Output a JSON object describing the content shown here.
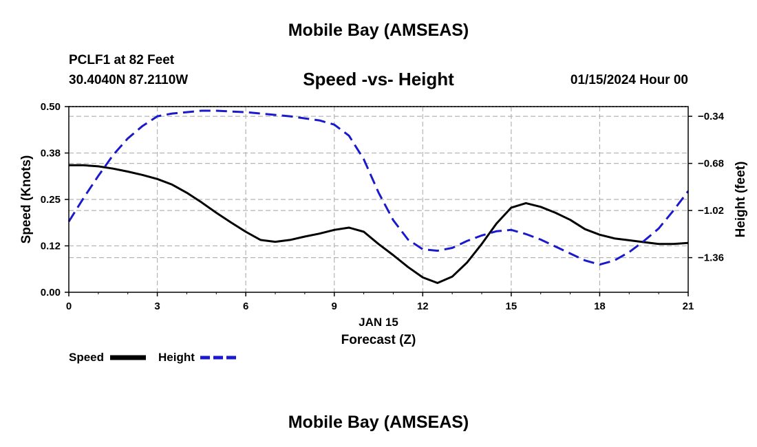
{
  "header": {
    "title": "Mobile Bay (AMSEAS)",
    "station": "PCLF1 at 82 Feet",
    "coords": "30.4040N  87.2110W",
    "subtitle": "Speed -vs- Height",
    "datetime": "01/15/2024 Hour 00"
  },
  "footer": {
    "title": "Mobile Bay (AMSEAS)"
  },
  "chart_data": {
    "type": "line",
    "xlabel": "Forecast (Z)",
    "xsublabel": "JAN 15",
    "ylabel_left": "Speed (Knots)",
    "ylabel_right": "Height (feet)",
    "xlim": [
      0,
      21
    ],
    "ylim_left": [
      0,
      0.5
    ],
    "ylim_right": [
      -1.61,
      -0.27
    ],
    "x_ticks": [
      0,
      3,
      6,
      9,
      12,
      15,
      18,
      21
    ],
    "x_tick_labels": [
      "0",
      "3",
      "6",
      "9",
      "12",
      "15",
      "18",
      "21"
    ],
    "y_left_ticks": [
      0,
      0.125,
      0.25,
      0.375,
      0.5
    ],
    "y_left_tick_labels": [
      "0.00",
      "0.12",
      "0.25",
      "0.38",
      "0.50"
    ],
    "y_right_ticks": [
      -0.34,
      -0.68,
      -1.02,
      -1.36
    ],
    "y_right_tick_labels": [
      "-0.34",
      "-0.68",
      "-1.02",
      "-1.36"
    ],
    "grid": true,
    "colors": {
      "speed": "#000000",
      "height": "#1a1acc",
      "grid": "#b4b4b4"
    },
    "series": [
      {
        "name": "Speed",
        "axis": "left",
        "style": "solid",
        "x": [
          0,
          0.5,
          1,
          1.5,
          2,
          2.5,
          3,
          3.5,
          4,
          4.5,
          5,
          5.5,
          6,
          6.5,
          7,
          7.5,
          8,
          8.5,
          9,
          9.5,
          10,
          10.5,
          11,
          11.5,
          12,
          12.5,
          13,
          13.5,
          14,
          14.5,
          15,
          15.5,
          16,
          16.5,
          17,
          17.5,
          18,
          18.5,
          19,
          19.5,
          20,
          20.5,
          21
        ],
        "values": [
          0.342,
          0.342,
          0.339,
          0.333,
          0.325,
          0.316,
          0.305,
          0.29,
          0.268,
          0.242,
          0.214,
          0.188,
          0.163,
          0.141,
          0.136,
          0.141,
          0.15,
          0.158,
          0.168,
          0.174,
          0.163,
          0.13,
          0.1,
          0.068,
          0.04,
          0.025,
          0.042,
          0.08,
          0.13,
          0.185,
          0.228,
          0.24,
          0.23,
          0.214,
          0.195,
          0.17,
          0.155,
          0.145,
          0.14,
          0.135,
          0.13,
          0.13,
          0.133
        ]
      },
      {
        "name": "Height",
        "axis": "right",
        "style": "dashed",
        "x": [
          0,
          0.5,
          1,
          1.5,
          2,
          2.5,
          3,
          3.5,
          4,
          4.5,
          5,
          5.5,
          6,
          6.5,
          7,
          7.5,
          8,
          8.5,
          9,
          9.5,
          10,
          10.5,
          11,
          11.5,
          12,
          12.5,
          13,
          13.5,
          14,
          14.5,
          15,
          15.5,
          16,
          16.5,
          17,
          17.5,
          18,
          18.5,
          19,
          19.5,
          20,
          20.5,
          21
        ],
        "values": [
          -1.1,
          -0.93,
          -0.77,
          -0.62,
          -0.5,
          -0.41,
          -0.34,
          -0.32,
          -0.31,
          -0.3,
          -0.3,
          -0.305,
          -0.31,
          -0.32,
          -0.33,
          -0.34,
          -0.355,
          -0.37,
          -0.4,
          -0.48,
          -0.65,
          -0.89,
          -1.09,
          -1.23,
          -1.3,
          -1.31,
          -1.29,
          -1.24,
          -1.2,
          -1.17,
          -1.16,
          -1.19,
          -1.23,
          -1.28,
          -1.33,
          -1.38,
          -1.41,
          -1.38,
          -1.32,
          -1.24,
          -1.15,
          -1.02,
          -0.88
        ]
      }
    ],
    "legend": {
      "placement": "bottom-left",
      "entries": [
        "Speed",
        "Height"
      ]
    }
  }
}
